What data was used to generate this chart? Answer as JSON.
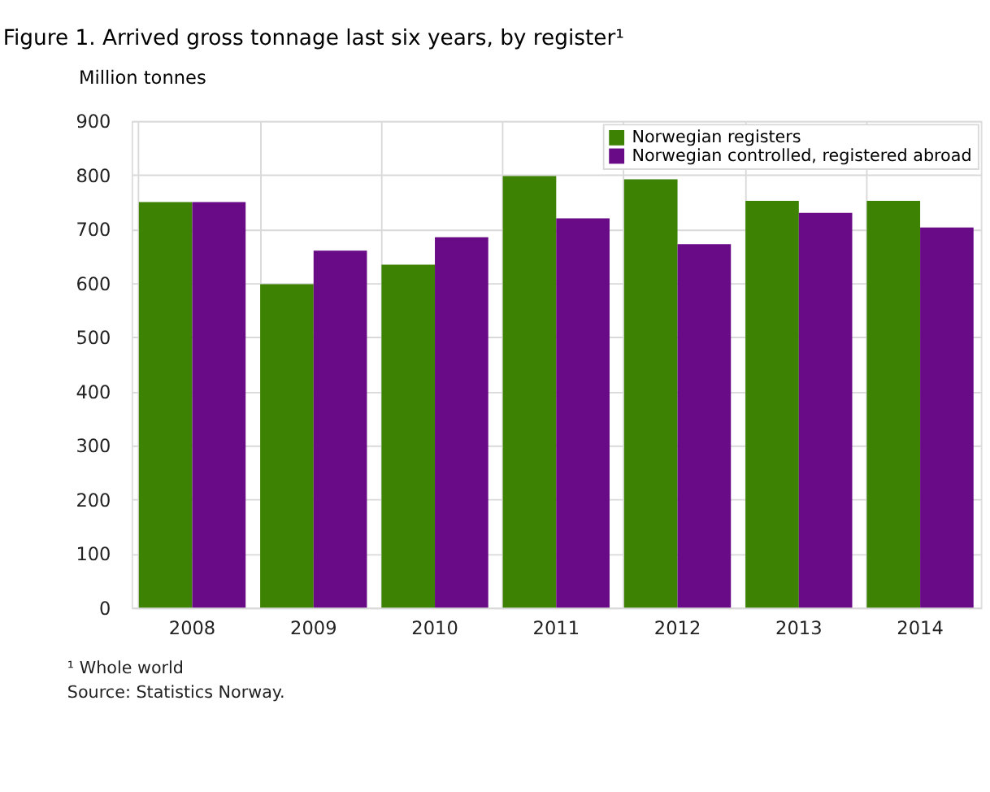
{
  "chart_data": {
    "type": "bar",
    "title": "Figure 1. Arrived gross tonnage last six years, by register¹",
    "ylabel": "Million tonnes",
    "categories": [
      "2008",
      "2009",
      "2010",
      "2011",
      "2012",
      "2013",
      "2014"
    ],
    "series": [
      {
        "name": "Norwegian registers",
        "color": "#3d8202",
        "values": [
          750,
          598,
          634,
          798,
          792,
          752,
          752
        ]
      },
      {
        "name": "Norwegian controlled, registered abroad",
        "color": "#690a86",
        "values": [
          750,
          660,
          685,
          720,
          672,
          730,
          703
        ]
      }
    ],
    "ylim": [
      0,
      900
    ],
    "yticks": [
      0,
      100,
      200,
      300,
      400,
      500,
      600,
      700,
      800,
      900
    ],
    "grid": true,
    "legend": "top right",
    "annotations": [
      "¹ Whole world",
      "Source: Statistics Norway."
    ]
  }
}
